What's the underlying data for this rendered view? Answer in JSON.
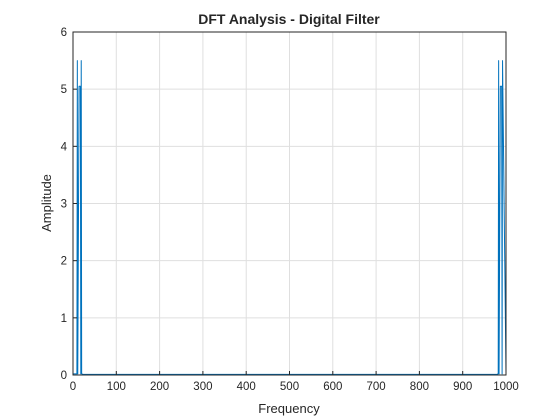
{
  "chart_data": {
    "type": "line",
    "title": "DFT Analysis - Digital Filter",
    "xlabel": "Frequency",
    "ylabel": "Amplitude",
    "xlim": [
      0,
      1000
    ],
    "ylim": [
      0,
      6
    ],
    "xticks": [
      0,
      100,
      200,
      300,
      400,
      500,
      600,
      700,
      800,
      900,
      1000
    ],
    "yticks": [
      0,
      1,
      2,
      3,
      4,
      5,
      6
    ],
    "grid": true,
    "legend": "none",
    "series_color": "#0072BD",
    "series": [
      {
        "x": [
          0,
          9,
          10,
          11,
          14,
          17,
          18,
          19,
          20,
          21,
          22,
          980,
          981,
          982,
          983,
          984,
          987,
          990,
          991,
          992,
          1000
        ],
        "y": [
          0.02,
          0.02,
          5.5,
          0.02,
          5.05,
          5.05,
          0.02,
          5.5,
          0.02,
          0.02,
          0.01,
          0.01,
          0.02,
          0.02,
          5.5,
          0.02,
          5.05,
          5.05,
          0.02,
          5.5,
          0.02
        ]
      }
    ]
  }
}
